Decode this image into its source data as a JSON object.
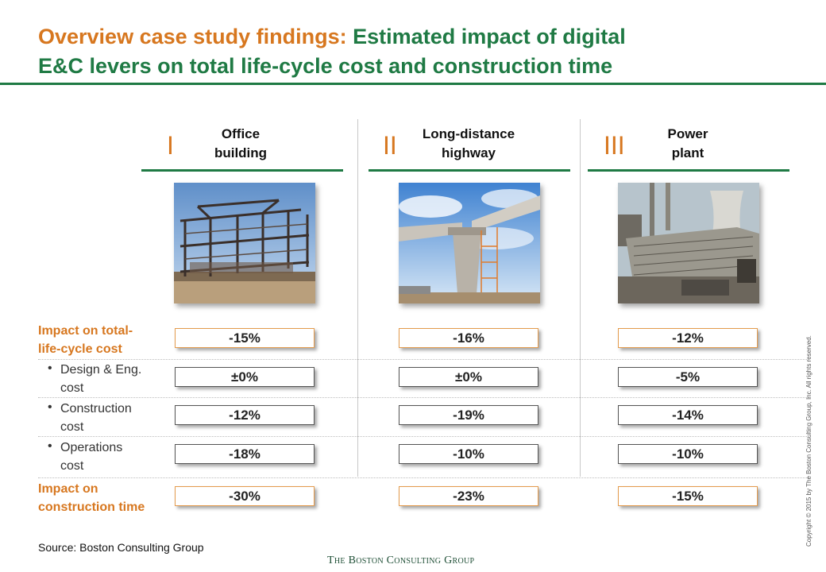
{
  "title": {
    "part1": "Overview case study findings:",
    "part2_line1": "Estimated impact of digital",
    "line2": "E&C levers on total life-cycle cost and construction time"
  },
  "columns": [
    {
      "numeral": "I",
      "title_line1": "Office",
      "title_line2": "building",
      "photo": "office-building-steel-frame-photo"
    },
    {
      "numeral": "II",
      "title_line1": "Long-distance",
      "title_line2": "highway",
      "photo": "highway-bridge-pier-construction-photo"
    },
    {
      "numeral": "III",
      "title_line1": "Power",
      "title_line2": "plant",
      "photo": "power-plant-construction-photo"
    }
  ],
  "rows": [
    {
      "label_line1": "Impact on total-",
      "label_line2": "life-cycle cost",
      "kind": "main",
      "values": [
        "-15%",
        "-16%",
        "-12%"
      ]
    },
    {
      "label_line1": "Design & Eng.",
      "label_line2": "cost",
      "kind": "sub",
      "values": [
        "±0%",
        "±0%",
        "-5%"
      ]
    },
    {
      "label_line1": "Construction",
      "label_line2": "cost",
      "kind": "sub",
      "values": [
        "-12%",
        "-19%",
        "-14%"
      ]
    },
    {
      "label_line1": "Operations",
      "label_line2": "cost",
      "kind": "sub",
      "values": [
        "-18%",
        "-10%",
        "-10%"
      ]
    },
    {
      "label_line1": "Impact on",
      "label_line2": "construction time",
      "kind": "main",
      "values": [
        "-30%",
        "-23%",
        "-15%"
      ]
    }
  ],
  "bullet_char": "•",
  "source": "Source: Boston Consulting Group",
  "logo": "The Boston Consulting Group",
  "copyright": "Copyright © 2015 by The Boston Consulting Group, Inc. All rights reserved.",
  "colors": {
    "orange": "#d7771f",
    "green": "#1f7a44",
    "box_orange_border": "#e49b4d",
    "box_gray_border": "#555555"
  }
}
